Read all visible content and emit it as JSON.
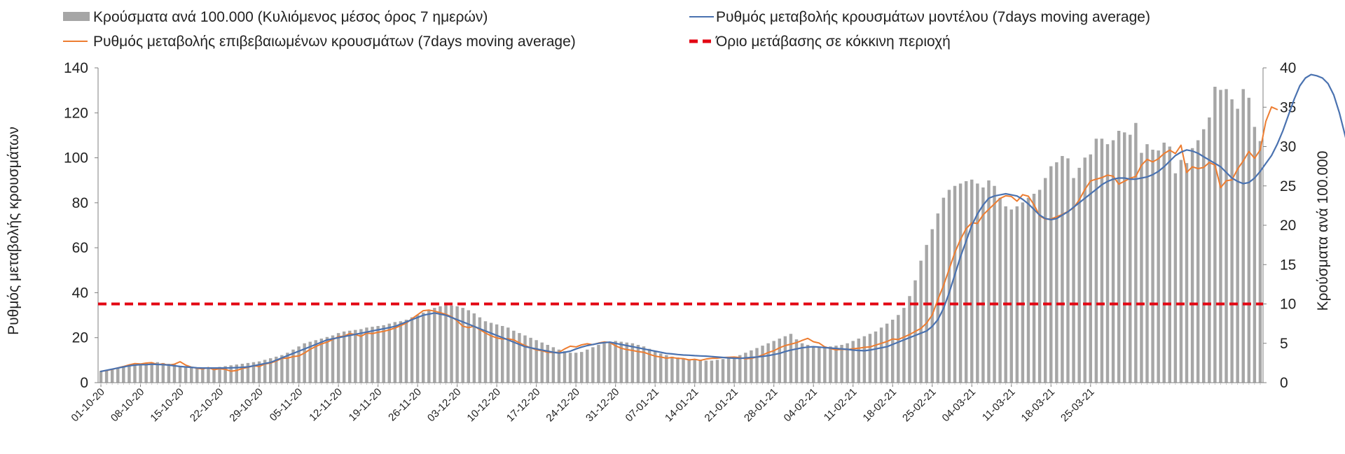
{
  "chart_data": {
    "type": "bar",
    "legend": {
      "placement": "top",
      "items": [
        {
          "label": "Κρούσματα ανά 100.000 (Κυλιόμενος μέσος όρος 7 ημερών)",
          "kind": "bar",
          "color": "#a6a6a6"
        },
        {
          "label": "Ρυθμός μεταβολής κρουσμάτων μοντέλου (7days moving average)",
          "kind": "line",
          "color": "#4a72b0"
        },
        {
          "label": "Ρυθμός μεταβολής επιβεβαιωμένων κρουσμάτων (7days moving average)",
          "kind": "line",
          "color": "#ed7d31"
        },
        {
          "label": "Όριο μετάβασης σε κόκκινη περιοχή",
          "kind": "dashed",
          "color": "#e30613"
        }
      ]
    },
    "ylabel_left": "Ρυθμός μεταβολής κρουσμάτων",
    "ylabel_right": "Κρούσματα ανά 100.000",
    "ylim_left": [
      0,
      140
    ],
    "ylim_right": [
      0,
      40
    ],
    "yticks_left": [
      0,
      20,
      40,
      60,
      80,
      100,
      120,
      140
    ],
    "yticks_right": [
      0,
      5,
      10,
      15,
      20,
      25,
      30,
      35,
      40
    ],
    "grid": false,
    "x_start": "01-10-20",
    "x_tick_labels": [
      "01-10-20",
      "08-10-20",
      "15-10-20",
      "22-10-20",
      "29-10-20",
      "05-11-20",
      "12-11-20",
      "19-11-20",
      "26-11-20",
      "03-12-20",
      "10-12-20",
      "17-12-20",
      "24-12-20",
      "31-12-20",
      "07-01-21",
      "14-01-21",
      "21-01-21",
      "28-01-21",
      "04-02-21",
      "11-02-21",
      "18-02-21",
      "25-02-21",
      "04-03-21",
      "11-03-21",
      "18-03-21",
      "25-03-21"
    ],
    "x_tick_step_days": 7,
    "threshold_left_axis": 35,
    "series": [
      {
        "name": "Κρούσματα ανά 100.000 (Κυλιόμενος μέσος όρος 7 ημερών)",
        "axis": "right",
        "type": "bar",
        "values": [
          1.5,
          1.6,
          1.7,
          1.9,
          2.1,
          2.2,
          2.3,
          2.4,
          2.5,
          2.5,
          2.6,
          2.5,
          2.4,
          2.3,
          2.1,
          2.0,
          1.9,
          1.8,
          1.8,
          1.8,
          1.9,
          2.0,
          2.1,
          2.2,
          2.3,
          2.4,
          2.5,
          2.6,
          2.7,
          2.9,
          3.1,
          3.3,
          3.5,
          3.8,
          4.2,
          4.6,
          5.0,
          5.2,
          5.4,
          5.6,
          5.8,
          6.0,
          6.3,
          6.5,
          6.6,
          6.7,
          6.8,
          7.0,
          7.1,
          7.2,
          7.3,
          7.5,
          7.7,
          7.8,
          8.0,
          8.3,
          8.6,
          8.9,
          9.2,
          9.5,
          9.7,
          9.9,
          9.8,
          9.7,
          9.5,
          9.2,
          8.8,
          8.3,
          7.8,
          7.6,
          7.4,
          7.2,
          7.0,
          6.6,
          6.3,
          6.0,
          5.7,
          5.4,
          5.1,
          4.8,
          4.5,
          4.2,
          4.0,
          3.8,
          3.8,
          3.9,
          4.2,
          4.5,
          4.8,
          5.0,
          5.2,
          5.3,
          5.2,
          5.1,
          5.0,
          4.8,
          4.6,
          4.3,
          4.0,
          3.7,
          3.5,
          3.3,
          3.2,
          3.1,
          3.0,
          3.0,
          2.9,
          2.8,
          2.8,
          2.9,
          3.0,
          3.1,
          3.3,
          3.5,
          3.8,
          4.1,
          4.4,
          4.7,
          5.0,
          5.3,
          5.6,
          5.9,
          6.2,
          5.5,
          5.0,
          4.8,
          4.6,
          4.5,
          4.5,
          4.6,
          4.7,
          4.8,
          5.0,
          5.3,
          5.6,
          5.9,
          6.2,
          6.5,
          7.0,
          7.5,
          8.0,
          8.6,
          9.5,
          11.0,
          13.0,
          15.5,
          17.5,
          19.5,
          21.5,
          23.5,
          24.5,
          25.0,
          25.3,
          25.6,
          25.8,
          25.3,
          24.8,
          25.7,
          25.0,
          23.5,
          22.4,
          22.0,
          22.4,
          22.9,
          23.5,
          24.0,
          24.5,
          26.0,
          27.5,
          28.0,
          28.8,
          28.5,
          26.0,
          27.3,
          28.6,
          29.0,
          31.0,
          31.0,
          30.3,
          30.8,
          32.0,
          31.8,
          31.5,
          33.0,
          29.2,
          30.3,
          29.6,
          29.5,
          30.5,
          30.0,
          26.6,
          28.3,
          27.9,
          29.8,
          30.8,
          32.2,
          33.7,
          37.6,
          37.2,
          37.3,
          36.0,
          34.8,
          37.3,
          36.2,
          32.5,
          30.7
        ]
      },
      {
        "name": "Ρυθμός μεταβολής κρουσμάτων μοντέλου (7days moving average)",
        "axis": "left",
        "type": "line",
        "values": [
          5,
          5.5,
          6,
          6.5,
          7,
          7.5,
          7.8,
          8,
          8,
          8.2,
          8.1,
          8,
          7.8,
          7.5,
          7.2,
          7,
          6.8,
          6.6,
          6.5,
          6.5,
          6.5,
          6.5,
          6.5,
          6.6,
          6.7,
          6.8,
          7,
          7.5,
          8,
          8.5,
          9,
          10,
          11,
          12,
          13,
          14,
          15,
          16,
          17,
          18,
          19,
          19.5,
          20,
          20.5,
          21,
          21.5,
          22,
          22.5,
          23,
          23.5,
          24,
          24.5,
          25,
          26,
          27,
          28,
          29,
          30,
          30.5,
          31,
          30.5,
          30,
          29,
          28,
          27,
          26,
          25,
          24,
          23,
          22,
          21,
          20,
          19,
          18,
          17,
          16,
          15.5,
          15,
          14.5,
          14,
          13.5,
          13.2,
          13.5,
          14,
          15,
          15.8,
          16.5,
          17,
          17.5,
          17.8,
          18,
          17.5,
          17,
          16.5,
          16,
          15.5,
          15,
          14.5,
          14,
          13.5,
          13,
          12.8,
          12.5,
          12.3,
          12.2,
          12,
          11.9,
          11.8,
          11.6,
          11.4,
          11.2,
          11,
          10.9,
          10.8,
          11,
          11.2,
          11.4,
          11.7,
          12,
          12.5,
          13,
          13.8,
          14.5,
          15,
          15.5,
          15.8,
          16,
          15.8,
          15.6,
          15.4,
          15.2,
          15,
          14.8,
          14.5,
          14.3,
          14.2,
          14.5,
          15,
          15.5,
          16,
          17,
          18,
          19,
          20,
          21,
          22,
          23,
          25,
          28,
          33,
          40,
          48,
          56,
          63,
          70,
          75,
          79,
          82,
          83,
          83.5,
          84,
          83.5,
          83,
          81.5,
          79.5,
          77,
          74.5,
          73,
          72.5,
          73,
          74.5,
          76,
          78,
          80,
          82,
          84,
          86,
          88,
          89.5,
          90.5,
          91,
          91,
          90.5,
          90.5,
          91,
          91.5,
          92.5,
          94,
          96,
          98.5,
          101,
          102.5,
          103.5,
          103,
          102,
          100.5,
          99,
          97.5,
          96,
          93.5,
          91,
          89.5,
          88.5,
          89,
          91,
          94,
          97.5,
          101,
          106,
          112,
          119,
          126,
          132,
          135.5,
          137,
          136.5,
          135.5,
          133,
          128,
          120,
          110,
          100
        ]
      },
      {
        "name": "Ρυθμός μεταβολής επιβεβαιωμένων κρουσμάτων (7days moving average)",
        "axis": "left",
        "type": "line",
        "values": [
          5,
          5.4,
          5.9,
          6.6,
          7.2,
          7.9,
          8.5,
          8.3,
          8.7,
          8.9,
          8.1,
          8.3,
          7.8,
          8.2,
          9.3,
          7.8,
          6.9,
          6.4,
          6.1,
          6.7,
          5.8,
          6.2,
          5.9,
          5.1,
          5.4,
          6.3,
          6.8,
          7.5,
          7.2,
          8.3,
          8.7,
          9.6,
          10.8,
          10.9,
          11.6,
          11.9,
          13.2,
          14.8,
          16.1,
          17.2,
          18,
          19.2,
          20.4,
          20.7,
          21.8,
          21.4,
          20.6,
          22,
          21.8,
          22.4,
          22.8,
          23.5,
          24.3,
          25.4,
          26.5,
          28.4,
          30.2,
          32,
          32.3,
          31.8,
          31.1,
          30.4,
          29.3,
          27.5,
          25.1,
          24.5,
          25.1,
          23.6,
          22.1,
          20.8,
          19.9,
          19.4,
          19.5,
          19,
          17.7,
          16.5,
          15.5,
          14.6,
          14.2,
          13.5,
          13.4,
          13.5,
          15,
          16.2,
          15.9,
          16.8,
          17.3,
          16.9,
          17.6,
          18.1,
          17.8,
          16.4,
          15.3,
          14.7,
          14.3,
          13.8,
          13.5,
          12.6,
          11.8,
          11.4,
          10.9,
          11.2,
          10.8,
          10.7,
          10.1,
          10.4,
          9.9,
          10.5,
          10.8,
          10.9,
          11.2,
          11.3,
          11.4,
          11.1,
          10.6,
          10.8,
          11.4,
          12.3,
          13.4,
          14.2,
          15.5,
          16.5,
          17.1,
          17.8,
          18.8,
          19.7,
          18.2,
          17.6,
          15.9,
          15.2,
          14.6,
          14.8,
          14.7,
          15.1,
          15.3,
          15.7,
          15.9,
          16.7,
          17.5,
          18.3,
          19.4,
          19.2,
          20.3,
          21.4,
          22.8,
          24.1,
          26.5,
          30.1,
          36.9,
          43.2,
          50.5,
          57.8,
          63.7,
          68.5,
          71.1,
          70.8,
          74.6,
          77.1,
          79.5,
          81.9,
          83.1,
          82.8,
          80.7,
          83.6,
          82.9,
          79.1,
          74.2,
          72.7,
          72.8,
          73.7,
          74.8,
          76.2,
          77.7,
          81.3,
          85.9,
          89.7,
          90.5,
          91.2,
          92.3,
          91.8,
          88.3,
          89.6,
          90.9,
          91.7,
          96.7,
          99.3,
          98.2,
          99.6,
          101.9,
          103.4,
          101.9,
          105.6,
          93.5,
          96,
          95.2,
          95.7,
          97.9,
          96.8,
          86.7,
          89.8,
          90.2,
          95,
          98.6,
          102.8,
          99.8,
          103.5,
          116.2,
          122.6,
          121.5
        ]
      },
      {
        "name": "Όριο μετάβασης σε κόκκινη περιοχή",
        "axis": "left",
        "type": "threshold",
        "value": 35
      }
    ]
  }
}
